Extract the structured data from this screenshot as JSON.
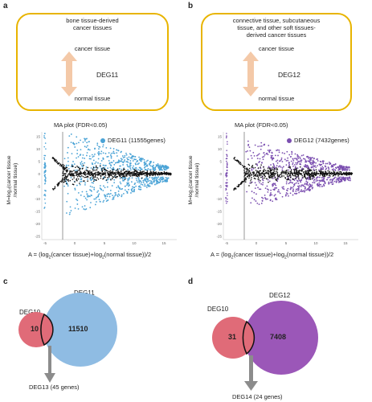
{
  "panels": {
    "a": {
      "letter": "a",
      "tissue": [
        "bone tissue-derived",
        "cancer tissues"
      ],
      "top_label": "cancer tissue",
      "deg": "DEG11",
      "bottom_label": "normal tissue",
      "ma_title": "MA plot (FDR<0.05)",
      "legend": "DEG11 (11555genes)",
      "color": "#4aa3d6"
    },
    "b": {
      "letter": "b",
      "tissue": [
        "connective tissue, subcutaneous",
        "tissue, and other soft tissues-",
        "derived cancer tissues"
      ],
      "top_label": "cancer tissue",
      "deg": "DEG12",
      "bottom_label": "normal tissue",
      "ma_title": "MA plot (FDR<0.05)",
      "legend": "DEG12 (7432genes)",
      "color": "#7b4fb0"
    },
    "c": {
      "letter": "c",
      "left_set": "DEG10",
      "right_set": "DEG11",
      "left_only": "10",
      "right_only": "11510",
      "result": "DEG13 (45 genes)",
      "left_color": "#e06b78",
      "right_color": "#8fbce3"
    },
    "d": {
      "letter": "d",
      "left_set": "DEG10",
      "right_set": "DEG12",
      "left_only": "31",
      "right_only": "7408",
      "result": "DEG14 (24 genes)",
      "left_color": "#e06b78",
      "right_color": "#9b57b8"
    }
  },
  "ylabel_lines": [
    "M=log₂(cancer tissue",
    "/normal tissue)"
  ],
  "xlabel_prefix": "A = (log",
  "xlabel_mid": "(cancer tissue)+log",
  "xlabel_suffix": "(normal tissue))/2",
  "subscript": "2",
  "yticks": [
    "15",
    "10",
    "5",
    "0",
    "-5",
    "-10",
    "-15",
    "-20",
    "-25"
  ],
  "xticks": [
    "-5",
    "0",
    "5",
    "10",
    "15"
  ],
  "colors": {
    "box_border": "#e8b400",
    "arrow": "#f4c9a8",
    "venn_arrow": "#8c8c8c"
  }
}
